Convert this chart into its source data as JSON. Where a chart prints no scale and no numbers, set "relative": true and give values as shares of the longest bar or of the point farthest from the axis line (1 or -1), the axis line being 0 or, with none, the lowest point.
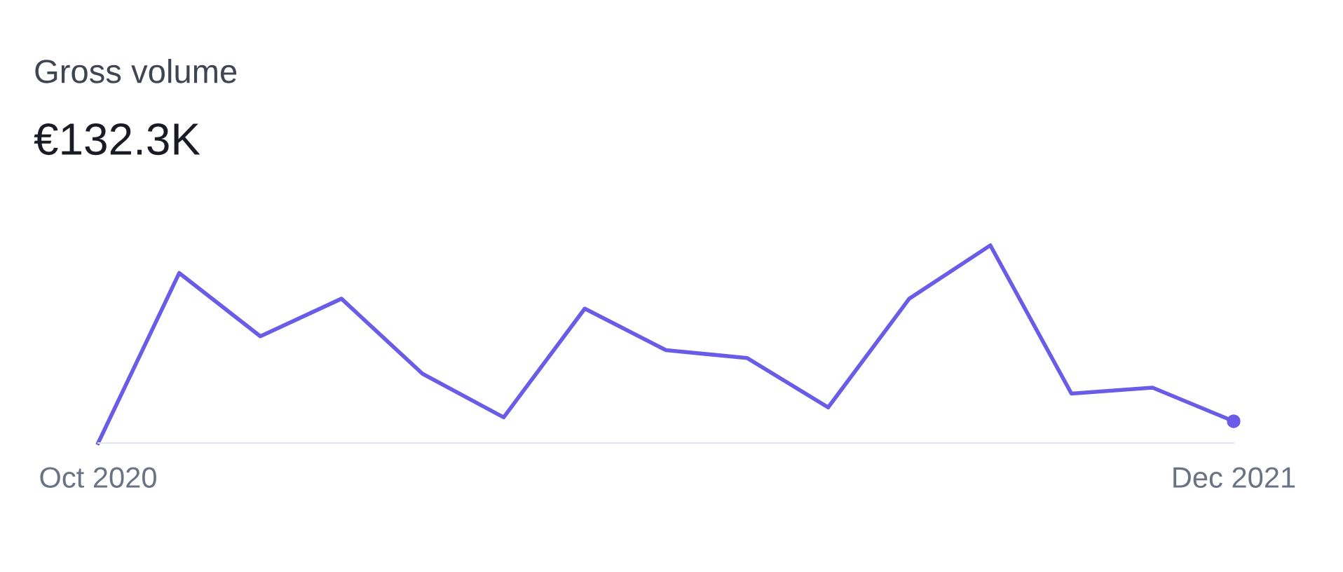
{
  "chart_data": {
    "type": "line",
    "title": "Gross volume",
    "subtitle": "€132.3K",
    "relative": true,
    "categories": [
      "Oct 2020",
      null,
      null,
      null,
      null,
      null,
      null,
      null,
      null,
      null,
      null,
      null,
      null,
      null,
      "Dec 2021"
    ],
    "series": [
      {
        "color": "#6b5ce7",
        "values": [
          0,
          0.86,
          0.54,
          0.73,
          0.35,
          0.13,
          0.68,
          0.47,
          0.43,
          0.18,
          0.73,
          1,
          0.25,
          0.28,
          0.11
        ]
      }
    ],
    "line_style": "solid",
    "grid": false
  }
}
